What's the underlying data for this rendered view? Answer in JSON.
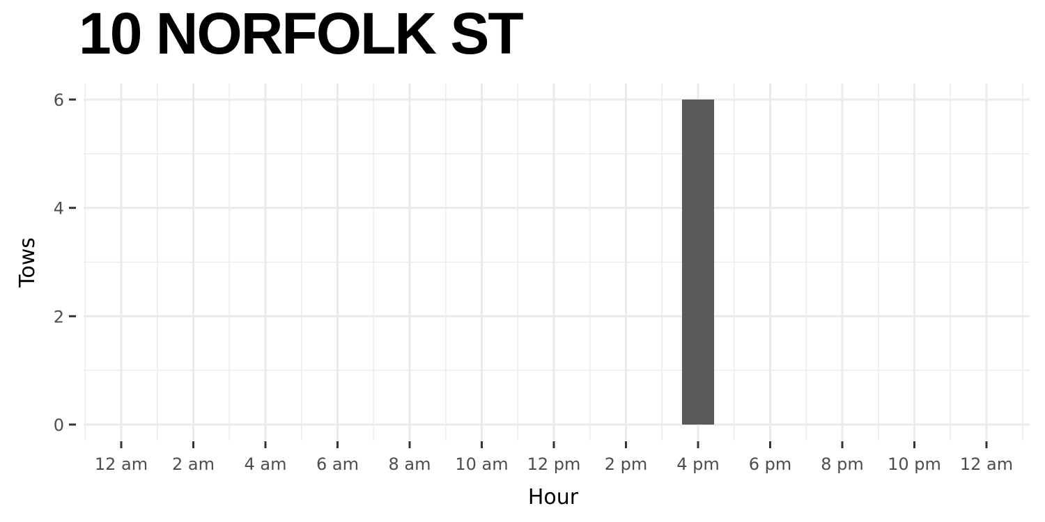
{
  "chart_data": {
    "type": "bar",
    "title": "10 NORFOLK ST",
    "xlabel": "Hour",
    "ylabel": "Tows",
    "x_ticks": [
      {
        "hour": 0,
        "label": "12 am"
      },
      {
        "hour": 2,
        "label": "2 am"
      },
      {
        "hour": 4,
        "label": "4 am"
      },
      {
        "hour": 6,
        "label": "6 am"
      },
      {
        "hour": 8,
        "label": "8 am"
      },
      {
        "hour": 10,
        "label": "10 am"
      },
      {
        "hour": 12,
        "label": "12 pm"
      },
      {
        "hour": 14,
        "label": "2 pm"
      },
      {
        "hour": 16,
        "label": "4 pm"
      },
      {
        "hour": 18,
        "label": "6 pm"
      },
      {
        "hour": 20,
        "label": "8 pm"
      },
      {
        "hour": 22,
        "label": "10 pm"
      },
      {
        "hour": 24,
        "label": "12 am"
      }
    ],
    "y_ticks": [
      0,
      2,
      4,
      6
    ],
    "xlim": [
      -1,
      25
    ],
    "ylim": [
      0,
      6
    ],
    "bars": [
      {
        "hour": 16,
        "value": 6
      }
    ],
    "bar_color": "#595959",
    "grid": true,
    "legend": "none"
  }
}
